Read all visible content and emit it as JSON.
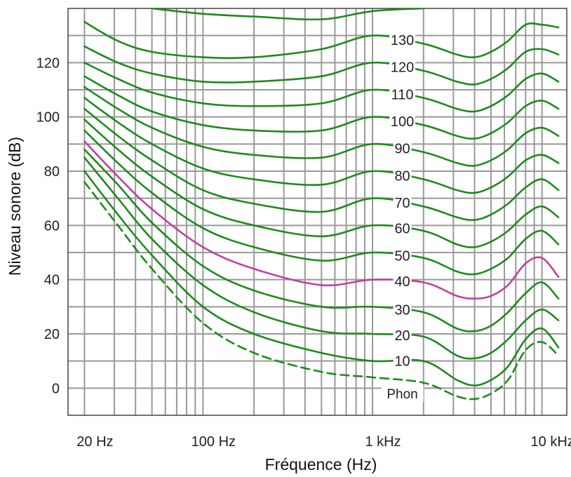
{
  "chart_data": {
    "type": "line",
    "xlabel": "Fréquence (Hz)",
    "ylabel": "Niveau sonore (dB)",
    "x_scale": "log",
    "xlim": [
      16,
      14000
    ],
    "ylim": [
      -10,
      140
    ],
    "grid": true,
    "x_ticks": [
      {
        "value": 20,
        "label": "20 Hz"
      },
      {
        "value": 100,
        "label": "100 Hz"
      },
      {
        "value": 1000,
        "label": "1 kHz"
      },
      {
        "value": 10000,
        "label": "10 kHz"
      }
    ],
    "y_ticks": [
      {
        "value": 0,
        "label": "0"
      },
      {
        "value": 20,
        "label": "20"
      },
      {
        "value": 40,
        "label": "40"
      },
      {
        "value": 60,
        "label": "60"
      },
      {
        "value": 80,
        "label": "80"
      },
      {
        "value": 100,
        "label": "100"
      },
      {
        "value": 120,
        "label": "120"
      }
    ],
    "unit_label": "Phon",
    "colors": {
      "curve": "#1e8a1e",
      "highlight": "#c040a0",
      "grid": "#999999"
    },
    "series": [
      {
        "name": "",
        "style": "dashed",
        "x": [
          20,
          31.5,
          50,
          100,
          200,
          500,
          1000,
          2000,
          3150,
          4000,
          5000,
          6300,
          8000,
          10000,
          12500
        ],
        "y": [
          76,
          60,
          44,
          24,
          13,
          6,
          4,
          2,
          -3,
          -4,
          -2,
          3,
          14,
          17,
          12
        ]
      },
      {
        "name": "",
        "label": "10",
        "x": [
          20,
          31.5,
          50,
          100,
          200,
          500,
          1000,
          2000,
          3150,
          4000,
          5000,
          6300,
          8000,
          10000,
          12500
        ],
        "y": [
          80,
          64,
          49,
          30,
          20,
          13,
          10,
          10,
          3,
          1,
          3,
          8,
          18,
          22,
          15
        ]
      },
      {
        "name": "",
        "label": "20",
        "x": [
          20,
          31.5,
          50,
          100,
          200,
          500,
          1000,
          2000,
          3150,
          4000,
          5000,
          6300,
          8000,
          10000,
          12500
        ],
        "y": [
          85,
          70,
          55,
          38,
          28,
          21,
          20,
          19,
          12,
          11,
          13,
          18,
          25,
          29,
          25
        ]
      },
      {
        "name": "",
        "label": "30",
        "x": [
          20,
          31.5,
          50,
          100,
          200,
          500,
          1000,
          2000,
          3150,
          4000,
          5000,
          6300,
          8000,
          10000,
          12500
        ],
        "y": [
          88,
          75,
          61,
          45,
          36,
          30,
          30,
          28,
          22,
          21,
          23,
          28,
          35,
          39,
          33
        ]
      },
      {
        "name": "",
        "label": "40",
        "highlight": true,
        "x": [
          20,
          31.5,
          50,
          100,
          200,
          500,
          1000,
          2000,
          3150,
          4000,
          5000,
          6300,
          8000,
          10000,
          12500
        ],
        "y": [
          91,
          78,
          66,
          52,
          44,
          38,
          40,
          39,
          34,
          33,
          34,
          38,
          46,
          48,
          41
        ]
      },
      {
        "name": "",
        "label": "50",
        "x": [
          20,
          31.5,
          50,
          100,
          200,
          500,
          1000,
          2000,
          3150,
          4000,
          5000,
          6300,
          8000,
          10000,
          12500
        ],
        "y": [
          95,
          83,
          72,
          59,
          52,
          47,
          50,
          48,
          43,
          42,
          44,
          48,
          55,
          58,
          53
        ]
      },
      {
        "name": "",
        "label": "60",
        "x": [
          20,
          31.5,
          50,
          100,
          200,
          500,
          1000,
          2000,
          3150,
          4000,
          5000,
          6300,
          8000,
          10000,
          12500
        ],
        "y": [
          99,
          88,
          78,
          66,
          60,
          56,
          60,
          58,
          53,
          52,
          54,
          58,
          64,
          67,
          63
        ]
      },
      {
        "name": "",
        "label": "70",
        "x": [
          20,
          31.5,
          50,
          100,
          200,
          500,
          1000,
          2000,
          3150,
          4000,
          5000,
          6300,
          8000,
          10000,
          12500
        ],
        "y": [
          103,
          93,
          84,
          73,
          68,
          65,
          70,
          67,
          63,
          62,
          64,
          68,
          74,
          77,
          73
        ]
      },
      {
        "name": "",
        "label": "80",
        "x": [
          20,
          31.5,
          50,
          100,
          200,
          500,
          1000,
          2000,
          3150,
          4000,
          5000,
          6300,
          8000,
          10000,
          12500
        ],
        "y": [
          107,
          98,
          90,
          81,
          77,
          75,
          80,
          77,
          73,
          72,
          74,
          78,
          84,
          86,
          83
        ]
      },
      {
        "name": "",
        "label": "90",
        "x": [
          20,
          31.5,
          50,
          100,
          200,
          500,
          1000,
          2000,
          3150,
          4000,
          5000,
          6300,
          8000,
          10000,
          12500
        ],
        "y": [
          111,
          103,
          96,
          89,
          86,
          85,
          90,
          87,
          83,
          82,
          84,
          88,
          94,
          96,
          93
        ]
      },
      {
        "name": "",
        "label": "100",
        "x": [
          20,
          31.5,
          50,
          100,
          200,
          500,
          1000,
          2000,
          3150,
          4000,
          5000,
          6300,
          8000,
          10000,
          12500
        ],
        "y": [
          115,
          108,
          102,
          97,
          95,
          95,
          100,
          97,
          93,
          92,
          94,
          98,
          104,
          106,
          103
        ]
      },
      {
        "name": "",
        "label": "110",
        "x": [
          20,
          31.5,
          50,
          100,
          200,
          500,
          1000,
          2000,
          3150,
          4000,
          5000,
          6300,
          8000,
          10000,
          12500
        ],
        "y": [
          120,
          114,
          109,
          105,
          104,
          105,
          110,
          107,
          103,
          102,
          104,
          108,
          114,
          116,
          113
        ]
      },
      {
        "name": "",
        "label": "120",
        "x": [
          20,
          31.5,
          50,
          100,
          200,
          500,
          1000,
          2000,
          3150,
          4000,
          5000,
          6300,
          8000,
          10000,
          12500
        ],
        "y": [
          126,
          120,
          116,
          113,
          113,
          115,
          120,
          117,
          113,
          112,
          114,
          118,
          124,
          125,
          123
        ]
      },
      {
        "name": "",
        "label": "130",
        "x": [
          20,
          31.5,
          50,
          100,
          200,
          500,
          1000,
          2000,
          3150,
          4000,
          5000,
          6300,
          8000,
          10000,
          12500
        ],
        "y": [
          135,
          128,
          124,
          122,
          122,
          125,
          130,
          127,
          123,
          122,
          124,
          128,
          134,
          134,
          133
        ]
      },
      {
        "name": "",
        "x": [
          50,
          100,
          200,
          500,
          1000,
          2000
        ],
        "y": [
          140,
          138,
          137,
          136,
          139,
          140
        ]
      }
    ]
  }
}
